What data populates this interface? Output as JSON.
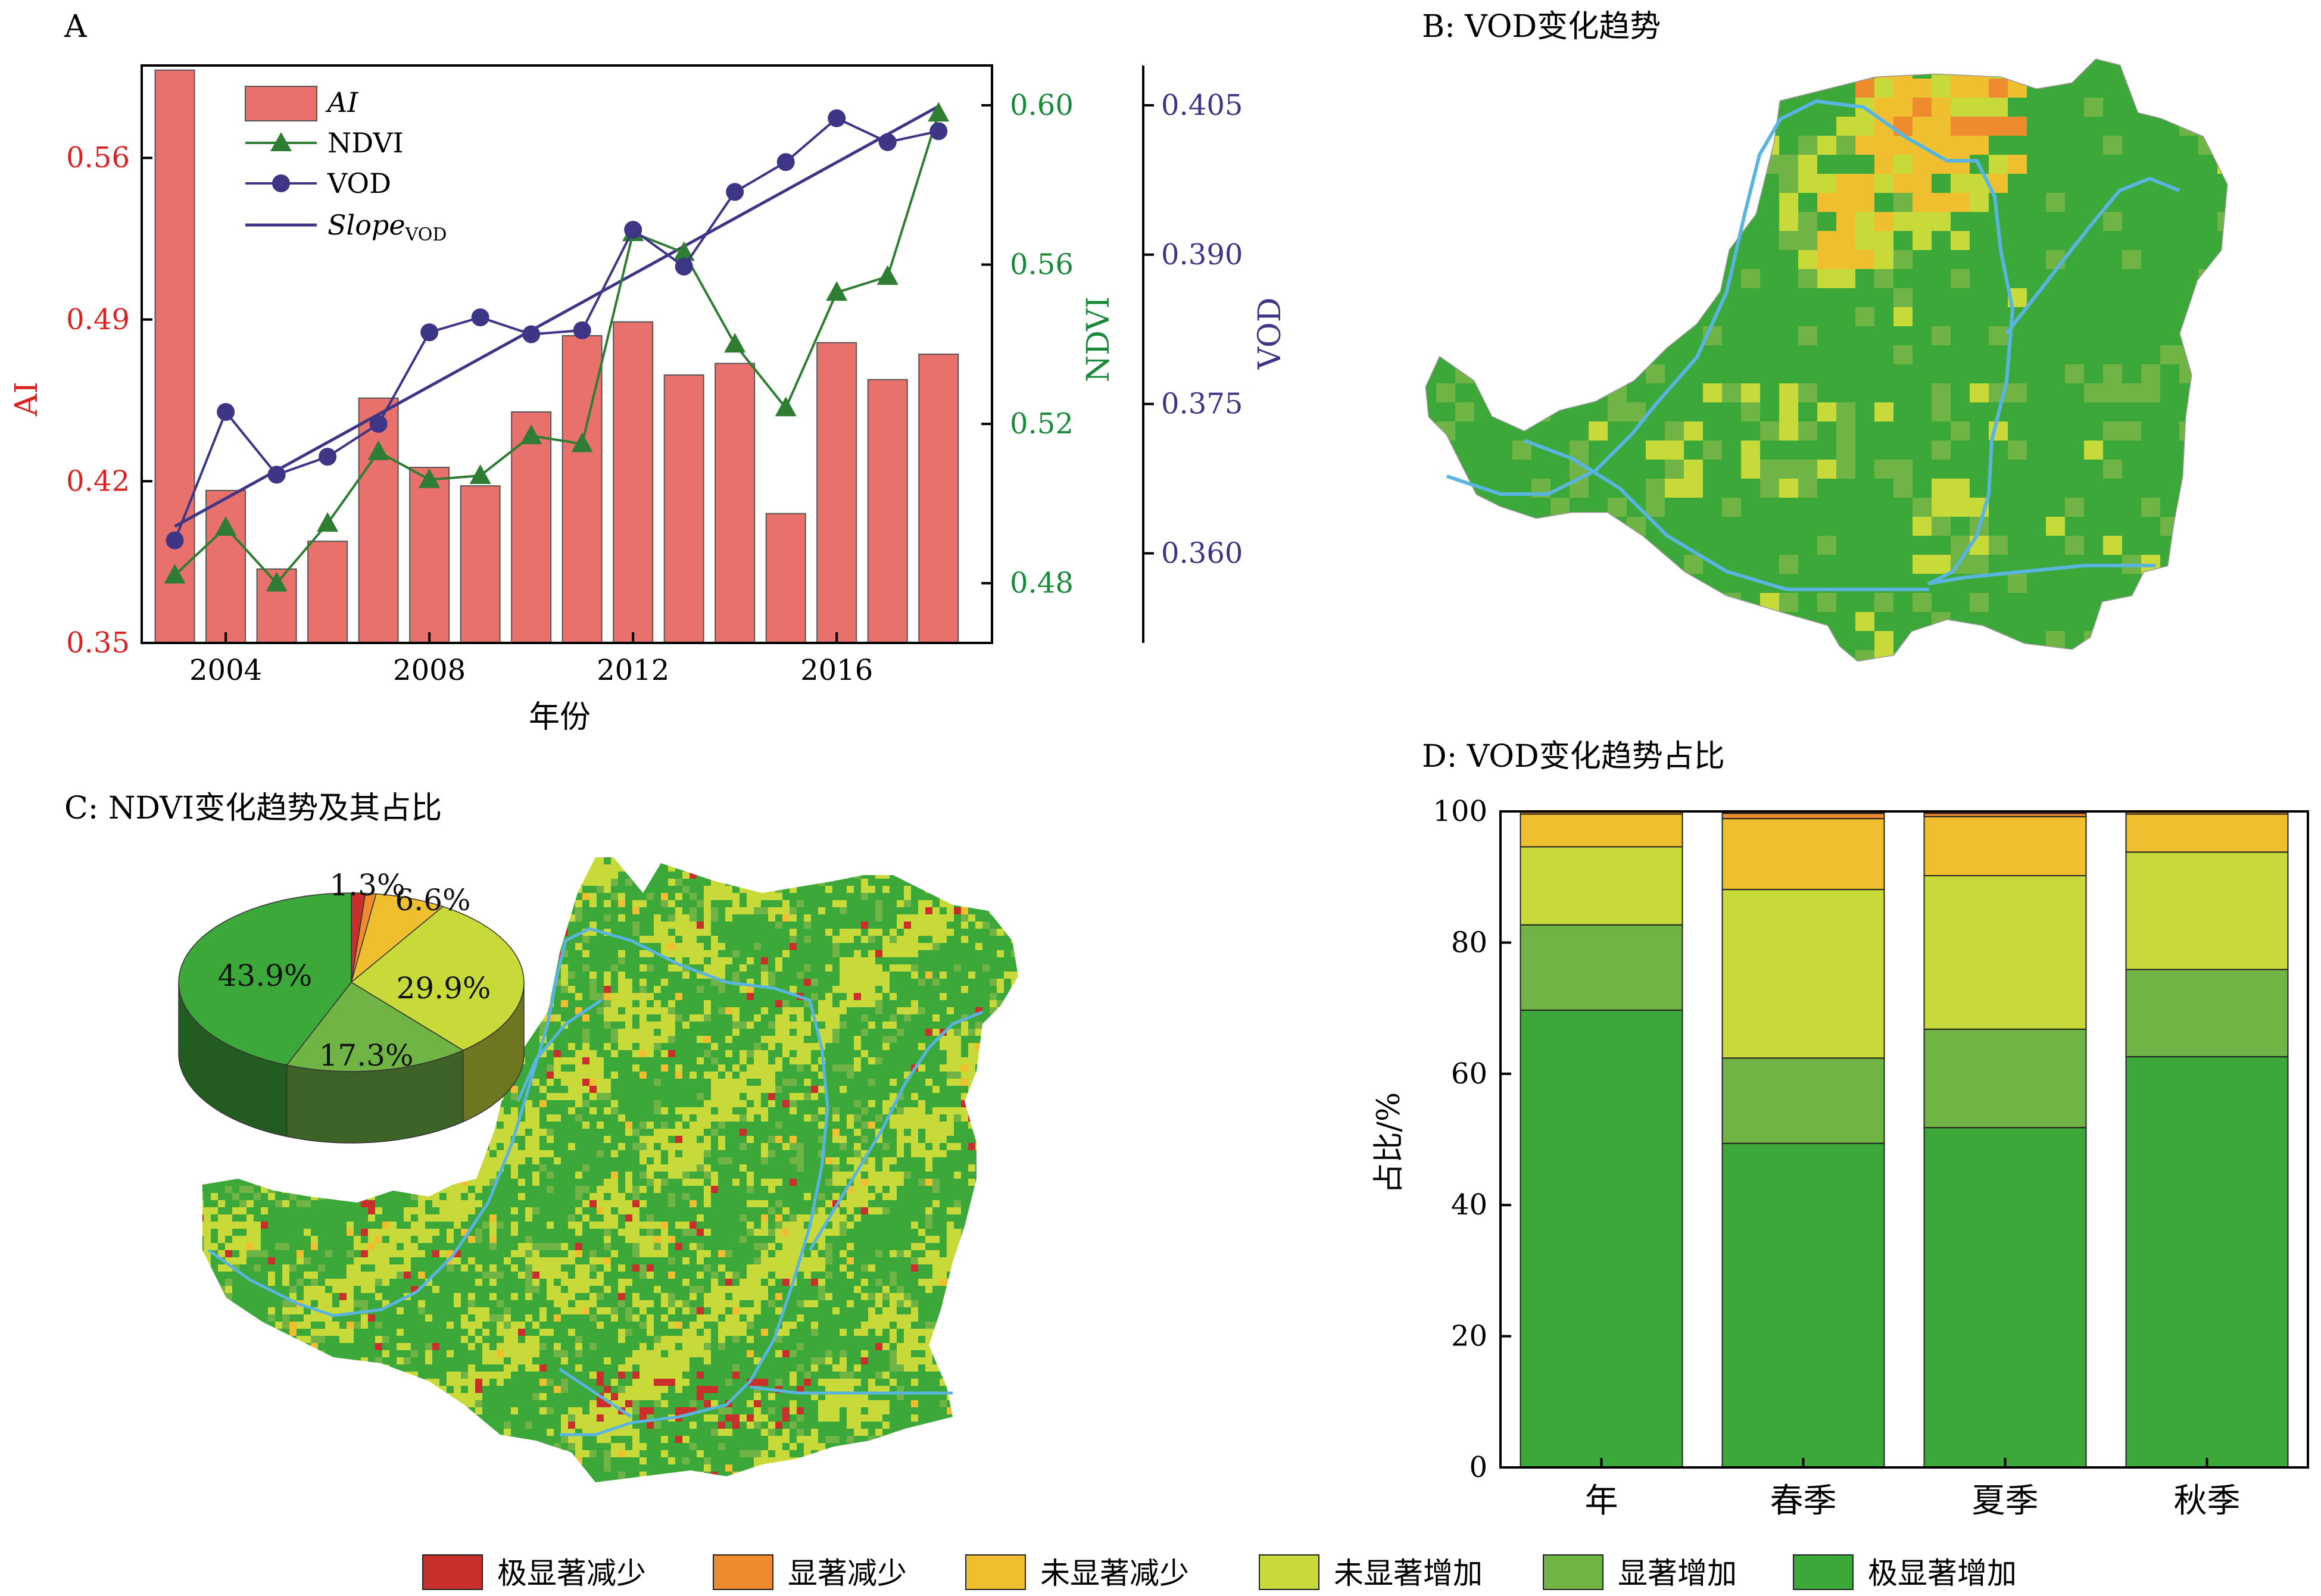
{
  "panels": {
    "a": {
      "label": "A"
    },
    "b": {
      "label": "B: VOD变化趋势"
    },
    "c": {
      "label": "C: NDVI变化趋势及其占比"
    },
    "d": {
      "label": "D: VOD变化趋势占比"
    }
  },
  "colors": {
    "ai": "#e8716b",
    "ndvi": "#2e7d32",
    "vod": "#3d3585",
    "ai_axis": "#d92323",
    "ndvi_axis": "#1a8a3a",
    "vod_axis": "#3d3585",
    "river": "#5ab4e0",
    "categories": [
      "#c9302c",
      "#ee8b2e",
      "#f0bf30",
      "#c8d93a",
      "#6fb445",
      "#3da83a"
    ]
  },
  "legend": [
    "极显著减少",
    "显著减少",
    "未显著减少",
    "未显著增加",
    "显著增加",
    "极显著增加"
  ],
  "chart_data": [
    {
      "type": "bar",
      "panel": "A",
      "xlabel": "年份",
      "x": [
        2003,
        2004,
        2005,
        2006,
        2007,
        2008,
        2009,
        2010,
        2011,
        2012,
        2013,
        2014,
        2015,
        2016,
        2017,
        2018
      ],
      "xticks": [
        "2004",
        "2008",
        "2012",
        "2016"
      ],
      "xtick_values": [
        2004,
        2008,
        2012,
        2016
      ],
      "series": [
        {
          "name": "AI",
          "axis": "left",
          "kind": "bar",
          "values": [
            0.598,
            0.416,
            0.382,
            0.394,
            0.456,
            0.426,
            0.418,
            0.45,
            0.483,
            0.489,
            0.466,
            0.471,
            0.406,
            0.48,
            0.464,
            0.475
          ]
        },
        {
          "name": "NDVI",
          "axis": "right1",
          "kind": "line-triangle",
          "values": [
            0.482,
            0.494,
            0.48,
            0.495,
            0.513,
            0.506,
            0.507,
            0.517,
            0.515,
            0.568,
            0.563,
            0.54,
            0.524,
            0.553,
            0.557,
            0.598
          ]
        },
        {
          "name": "VOD",
          "axis": "right2",
          "kind": "line-circle",
          "values": [
            0.3613,
            0.3742,
            0.3679,
            0.3697,
            0.373,
            0.3822,
            0.3837,
            0.382,
            0.3824,
            0.3925,
            0.3888,
            0.3963,
            0.3993,
            0.4037,
            0.4013,
            0.4024
          ]
        },
        {
          "name": "SlopeVOD",
          "legend_main": "Slope",
          "legend_sub": "VOD",
          "axis": "right2",
          "kind": "trend",
          "endpoints": [
            0.3627,
            0.4049
          ]
        }
      ],
      "axes": {
        "left": {
          "label": "AI",
          "ylim": [
            0.35,
            0.6
          ],
          "ticks": [
            "0.35",
            "0.42",
            "0.49",
            "0.56"
          ]
        },
        "right1": {
          "label": "NDVI",
          "ylim": [
            0.465,
            0.61
          ],
          "ticks": [
            "0.48",
            "0.52",
            "0.56",
            "0.60"
          ]
        },
        "right2": {
          "label": "VOD",
          "ylim": [
            0.351,
            0.409
          ],
          "ticks": [
            "0.360",
            "0.375",
            "0.390",
            "0.405"
          ]
        }
      },
      "legend_items": [
        "AI",
        "NDVI",
        "VOD",
        "SlopeVOD"
      ]
    },
    {
      "type": "pie",
      "panel": "C",
      "categories": [
        "极显著减少",
        "显著减少",
        "未显著减少",
        "未显著增加",
        "显著增加",
        "极显著增加"
      ],
      "values": [
        1.3,
        1.0,
        6.6,
        29.9,
        17.3,
        43.9
      ],
      "labels": [
        "1.3%",
        "",
        "6.6%",
        "29.9%",
        "17.3%",
        "43.9%"
      ]
    },
    {
      "type": "bar",
      "panel": "D",
      "stacked": true,
      "ylabel": "占比/%",
      "ylim": [
        0,
        100
      ],
      "yticks": [
        "0",
        "20",
        "40",
        "60",
        "80",
        "100"
      ],
      "categories": [
        "年",
        "春季",
        "夏季",
        "秋季"
      ],
      "series": [
        {
          "name": "极显著增加",
          "values": [
            69.7,
            49.4,
            51.8,
            62.6
          ]
        },
        {
          "name": "显著增加",
          "values": [
            13.0,
            13.0,
            15.0,
            13.3
          ]
        },
        {
          "name": "未显著增加",
          "values": [
            11.9,
            25.7,
            23.4,
            17.9
          ]
        },
        {
          "name": "未显著减少",
          "values": [
            5.0,
            10.8,
            9.0,
            5.8
          ]
        },
        {
          "name": "显著减少",
          "values": [
            0.3,
            0.8,
            0.5,
            0.3
          ]
        },
        {
          "name": "极显著减少",
          "values": [
            0.1,
            0.3,
            0.3,
            0.1
          ]
        }
      ]
    }
  ]
}
